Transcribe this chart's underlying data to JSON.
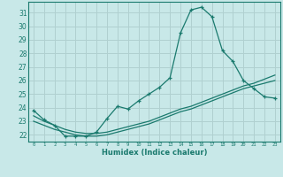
{
  "xlabel": "Humidex (Indice chaleur)",
  "background_color": "#c8e8e8",
  "grid_color": "#b0d0d0",
  "line_color": "#1a7a6e",
  "xlim": [
    -0.5,
    23.5
  ],
  "ylim": [
    21.5,
    31.8
  ],
  "xticks": [
    0,
    1,
    2,
    3,
    4,
    5,
    6,
    7,
    8,
    9,
    10,
    11,
    12,
    13,
    14,
    15,
    16,
    17,
    18,
    19,
    20,
    21,
    22,
    23
  ],
  "yticks": [
    22,
    23,
    24,
    25,
    26,
    27,
    28,
    29,
    30,
    31
  ],
  "line1_x": [
    0,
    1,
    2,
    3,
    4,
    5,
    6,
    7,
    8,
    9,
    10,
    11,
    12,
    13,
    14,
    15,
    16,
    17,
    18,
    19,
    20,
    21,
    22,
    23
  ],
  "line1_y": [
    23.8,
    23.1,
    22.7,
    21.9,
    21.9,
    21.9,
    22.2,
    23.2,
    24.1,
    23.9,
    24.5,
    25.0,
    25.5,
    26.2,
    29.5,
    31.2,
    31.4,
    30.7,
    28.2,
    27.4,
    26.0,
    25.4,
    24.8,
    24.7
  ],
  "line2_x": [
    0,
    1,
    2,
    3,
    4,
    5,
    6,
    7,
    8,
    9,
    10,
    11,
    12,
    13,
    14,
    15,
    16,
    17,
    18,
    19,
    20,
    21,
    22,
    23
  ],
  "line2_y": [
    23.4,
    23.0,
    22.7,
    22.4,
    22.2,
    22.1,
    22.1,
    22.2,
    22.4,
    22.6,
    22.8,
    23.0,
    23.3,
    23.6,
    23.9,
    24.1,
    24.4,
    24.7,
    25.0,
    25.3,
    25.6,
    25.8,
    26.1,
    26.4
  ],
  "line3_x": [
    0,
    1,
    2,
    3,
    4,
    5,
    6,
    7,
    8,
    9,
    10,
    11,
    12,
    13,
    14,
    15,
    16,
    17,
    18,
    19,
    20,
    21,
    22,
    23
  ],
  "line3_y": [
    23.0,
    22.7,
    22.4,
    22.2,
    22.0,
    21.9,
    21.9,
    22.0,
    22.2,
    22.4,
    22.6,
    22.8,
    23.1,
    23.4,
    23.7,
    23.9,
    24.2,
    24.5,
    24.8,
    25.1,
    25.4,
    25.6,
    25.8,
    26.0
  ]
}
